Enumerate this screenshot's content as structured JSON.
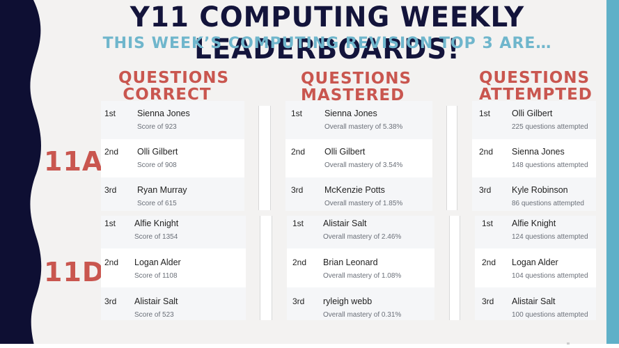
{
  "title": "Y11 COMPUTING WEEKLY LEADERBOARDS!",
  "subtitle": "THIS WEEK’S COMPUTING REVISION TOP 3 ARE…",
  "columns": [
    {
      "line1": "QUESTIONS",
      "line2": "CORRECT"
    },
    {
      "line1": "QUESTIONS",
      "line2": "MASTERED"
    },
    {
      "line1": "QUESTIONS",
      "line2": "ATTEMPTED"
    }
  ],
  "classes": [
    {
      "label": "11A",
      "boards": [
        [
          {
            "rank": "1st",
            "name": "Sienna Jones",
            "detail": "Score of 923"
          },
          {
            "rank": "2nd",
            "name": "Olli Gilbert",
            "detail": "Score of 908"
          },
          {
            "rank": "3rd",
            "name": "Ryan Murray",
            "detail": "Score of 615"
          }
        ],
        [
          {
            "rank": "1st",
            "name": "Sienna Jones",
            "detail": "Overall mastery of 5.38%"
          },
          {
            "rank": "2nd",
            "name": "Olli Gilbert",
            "detail": "Overall mastery of 3.54%"
          },
          {
            "rank": "3rd",
            "name": "McKenzie Potts",
            "detail": "Overall mastery of 1.85%"
          }
        ],
        [
          {
            "rank": "1st",
            "name": "Olli Gilbert",
            "detail": "225 questions attempted"
          },
          {
            "rank": "2nd",
            "name": "Sienna Jones",
            "detail": "148 questions attempted"
          },
          {
            "rank": "3rd",
            "name": "Kyle Robinson",
            "detail": "86 questions attempted"
          }
        ]
      ]
    },
    {
      "label": "11D",
      "boards": [
        [
          {
            "rank": "1st",
            "name": "Alfie Knight",
            "detail": "Score of 1354"
          },
          {
            "rank": "2nd",
            "name": "Logan Alder",
            "detail": "Score of 1108"
          },
          {
            "rank": "3rd",
            "name": "Alistair Salt",
            "detail": "Score of 523"
          }
        ],
        [
          {
            "rank": "1st",
            "name": "Alistair Salt",
            "detail": "Overall mastery of 2.46%"
          },
          {
            "rank": "2nd",
            "name": "Brian Leonard",
            "detail": "Overall mastery of 1.08%"
          },
          {
            "rank": "3rd",
            "name": "ryleigh webb",
            "detail": "Overall mastery of 0.31%"
          }
        ],
        [
          {
            "rank": "1st",
            "name": "Alfie Knight",
            "detail": "124 questions attempted"
          },
          {
            "rank": "2nd",
            "name": "Logan Alder",
            "detail": "104 questions attempted"
          },
          {
            "rank": "3rd",
            "name": "Alistair Salt",
            "detail": "100 questions attempted"
          }
        ]
      ]
    }
  ],
  "colors": {
    "title": "#13143b",
    "subtitle": "#6fb6cc",
    "heading": "#c9564f",
    "wave": "#0e0f33",
    "accent_bar": "#5fb0c8"
  }
}
